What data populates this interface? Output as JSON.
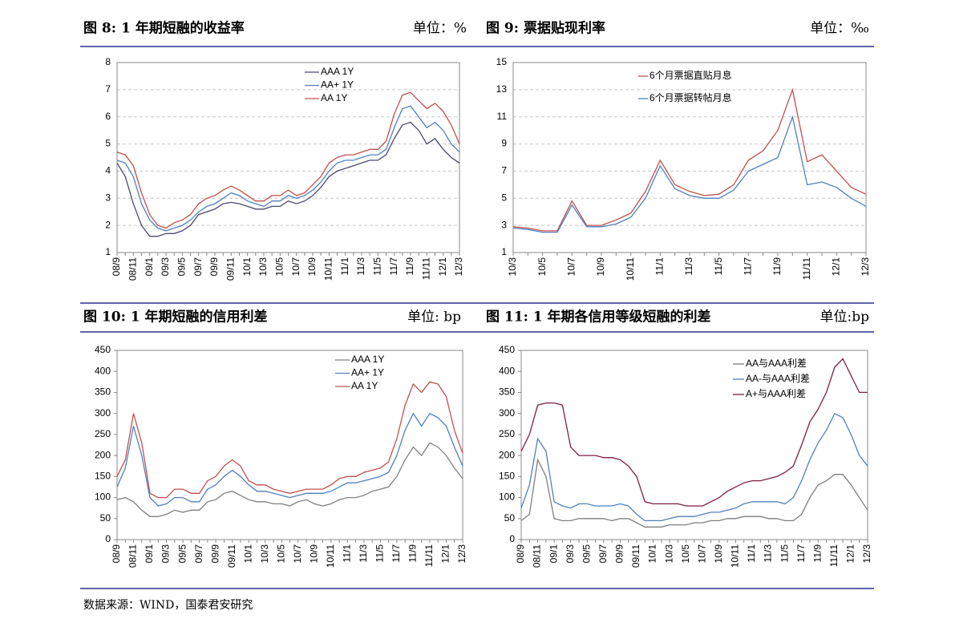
{
  "chart_data": [
    {
      "type": "line",
      "title": "图 8:  1 年期短融的收益率",
      "unit": "单位：%",
      "categories": [
        "08/9",
        null,
        "08/11",
        null,
        "09/1",
        null,
        "09/3",
        null,
        "09/5",
        null,
        "09/7",
        null,
        "09/9",
        null,
        "09/11",
        null,
        "10/1",
        null,
        "10/3",
        null,
        "10/5",
        null,
        "10/7",
        null,
        "10/9",
        null,
        "10/11",
        null,
        "11/1",
        null,
        "11/3",
        null,
        "11/5",
        null,
        "11/7",
        null,
        "11/9",
        null,
        "11/11",
        null,
        "12/1",
        null,
        "12/3"
      ],
      "series": [
        {
          "name": "AAA 1Y",
          "color": "#4a4a6a",
          "values": [
            4.3,
            3.8,
            2.8,
            2.0,
            1.6,
            1.6,
            1.7,
            1.7,
            1.8,
            2.0,
            2.4,
            2.5,
            2.6,
            2.8,
            2.85,
            2.8,
            2.7,
            2.6,
            2.6,
            2.7,
            2.7,
            2.9,
            2.8,
            2.9,
            3.1,
            3.4,
            3.8,
            4.0,
            4.1,
            4.2,
            4.3,
            4.4,
            4.4,
            4.6,
            5.2,
            5.7,
            5.8,
            5.5,
            5.0,
            5.2,
            4.8,
            4.5,
            4.3
          ]
        },
        {
          "name": "AA+ 1Y",
          "color": "#4f81bd",
          "values": [
            4.4,
            4.3,
            3.8,
            2.8,
            2.2,
            1.9,
            1.8,
            1.9,
            2.0,
            2.2,
            2.5,
            2.7,
            2.8,
            3.0,
            3.2,
            3.1,
            2.9,
            2.8,
            2.7,
            2.9,
            2.9,
            3.1,
            3.0,
            3.1,
            3.3,
            3.6,
            4.0,
            4.3,
            4.4,
            4.4,
            4.5,
            4.6,
            4.6,
            4.8,
            5.6,
            6.3,
            6.4,
            6.0,
            5.6,
            5.8,
            5.5,
            5.0,
            4.7
          ]
        },
        {
          "name": "AA 1Y",
          "color": "#c0504d",
          "values": [
            4.7,
            4.6,
            4.2,
            3.2,
            2.4,
            2.0,
            1.9,
            2.1,
            2.2,
            2.4,
            2.8,
            3.0,
            3.1,
            3.3,
            3.45,
            3.3,
            3.1,
            2.9,
            2.9,
            3.1,
            3.1,
            3.3,
            3.1,
            3.2,
            3.5,
            3.8,
            4.3,
            4.5,
            4.6,
            4.6,
            4.7,
            4.8,
            4.8,
            5.1,
            6.1,
            6.8,
            6.9,
            6.6,
            6.3,
            6.5,
            6.2,
            5.7,
            5.0
          ]
        }
      ],
      "ylim": [
        1,
        8
      ],
      "yticks": [
        1,
        2,
        3,
        4,
        5,
        6,
        7,
        8
      ],
      "grid": true
    },
    {
      "type": "line",
      "title": "图 9:  票据贴现利率",
      "unit": "单位：‰",
      "categories": [
        "10/3",
        null,
        "10/5",
        null,
        "10/7",
        null,
        "10/9",
        null,
        "10/11",
        null,
        "11/1",
        null,
        "11/3",
        null,
        "11/5",
        null,
        "11/7",
        null,
        "11/9",
        null,
        "11/11",
        null,
        "12/1",
        null,
        "12/3"
      ],
      "series": [
        {
          "name": "6个月票据直贴月息",
          "color": "#c0504d",
          "values": [
            2.9,
            2.8,
            2.6,
            2.6,
            4.8,
            3.0,
            3.0,
            3.4,
            3.9,
            5.5,
            7.8,
            6.0,
            5.5,
            5.2,
            5.3,
            6.0,
            7.8,
            8.5,
            10.0,
            13.0,
            7.7,
            8.2,
            7.0,
            5.8,
            5.3
          ]
        },
        {
          "name": "6个月票据转帖月息",
          "color": "#4f81bd",
          "values": [
            2.8,
            2.7,
            2.5,
            2.5,
            4.5,
            2.9,
            2.9,
            3.1,
            3.6,
            5.0,
            7.4,
            5.7,
            5.2,
            5.0,
            5.0,
            5.6,
            7.0,
            7.5,
            8.0,
            11.0,
            6.0,
            6.2,
            5.8,
            5.0,
            4.4
          ]
        }
      ],
      "ylim": [
        1,
        15
      ],
      "yticks": [
        1,
        3,
        5,
        7,
        9,
        11,
        13,
        15
      ],
      "grid": true
    },
    {
      "type": "line",
      "title": "图 10:  1 年期短融的信用利差",
      "unit": "单位:  bp",
      "categories": [
        "08/9",
        null,
        "08/11",
        null,
        "09/1",
        null,
        "09/3",
        null,
        "09/5",
        null,
        "09/7",
        null,
        "09/9",
        null,
        "09/11",
        null,
        "10/1",
        null,
        "10/3",
        null,
        "10/5",
        null,
        "10/7",
        null,
        "10/9",
        null,
        "10/11",
        null,
        "11/1",
        null,
        "11/3",
        null,
        "11/5",
        null,
        "11/7",
        null,
        "11/9",
        null,
        "11/11",
        null,
        "12/1",
        null,
        "12/3"
      ],
      "series": [
        {
          "name": "AAA 1Y",
          "color": "#7f7f7f",
          "values": [
            95,
            100,
            90,
            70,
            55,
            55,
            60,
            70,
            65,
            70,
            70,
            90,
            95,
            110,
            115,
            105,
            95,
            90,
            90,
            85,
            85,
            80,
            90,
            95,
            85,
            80,
            85,
            95,
            100,
            100,
            105,
            115,
            120,
            125,
            150,
            190,
            220,
            200,
            230,
            220,
            200,
            170,
            145
          ]
        },
        {
          "name": "AA+ 1Y",
          "color": "#4f81bd",
          "values": [
            125,
            170,
            270,
            200,
            100,
            80,
            85,
            100,
            100,
            90,
            90,
            120,
            130,
            150,
            165,
            150,
            130,
            115,
            115,
            110,
            105,
            100,
            105,
            110,
            110,
            110,
            115,
            125,
            135,
            135,
            140,
            145,
            150,
            160,
            200,
            260,
            300,
            270,
            300,
            290,
            270,
            220,
            175
          ]
        },
        {
          "name": "AA 1Y",
          "color": "#c0504d",
          "values": [
            150,
            190,
            300,
            230,
            110,
            100,
            100,
            120,
            120,
            110,
            110,
            140,
            150,
            175,
            190,
            175,
            140,
            130,
            130,
            120,
            115,
            110,
            115,
            120,
            120,
            120,
            130,
            145,
            150,
            150,
            160,
            165,
            170,
            185,
            240,
            320,
            370,
            350,
            375,
            370,
            340,
            260,
            205
          ]
        }
      ],
      "ylim": [
        0,
        450
      ],
      "yticks": [
        0,
        50,
        100,
        150,
        200,
        250,
        300,
        350,
        400,
        450
      ],
      "grid": false
    },
    {
      "type": "line",
      "title": "图 11:  1 年期各信用等级短融的利差",
      "unit": "单位:bp",
      "categories": [
        "08/9",
        null,
        "08/11",
        null,
        "09/1",
        null,
        "09/3",
        null,
        "09/5",
        null,
        "09/7",
        null,
        "09/9",
        null,
        "09/11",
        null,
        "10/1",
        null,
        "10/3",
        null,
        "10/5",
        null,
        "10/7",
        null,
        "10/9",
        null,
        "10/11",
        null,
        "11/1",
        null,
        "11/3",
        null,
        "11/5",
        null,
        "11/7",
        null,
        "11/9",
        null,
        "11/11",
        null,
        "12/1",
        null,
        "12/3"
      ],
      "series": [
        {
          "name": "AA与AAA利差",
          "color": "#7f7f7f",
          "values": [
            45,
            60,
            190,
            150,
            50,
            45,
            45,
            50,
            50,
            50,
            50,
            45,
            50,
            50,
            40,
            30,
            30,
            30,
            35,
            35,
            35,
            40,
            40,
            45,
            45,
            50,
            50,
            55,
            55,
            55,
            50,
            50,
            45,
            45,
            60,
            100,
            130,
            140,
            155,
            155,
            130,
            100,
            70
          ]
        },
        {
          "name": "AA-与AAA利差",
          "color": "#4f81bd",
          "values": [
            75,
            130,
            240,
            210,
            90,
            80,
            75,
            85,
            85,
            80,
            80,
            80,
            85,
            80,
            60,
            45,
            45,
            45,
            50,
            55,
            55,
            55,
            60,
            65,
            65,
            70,
            75,
            85,
            90,
            90,
            90,
            90,
            85,
            100,
            140,
            190,
            230,
            260,
            300,
            290,
            250,
            200,
            175
          ]
        },
        {
          "name": "A+与AAA利差",
          "color": "#7b1f45",
          "values": [
            210,
            250,
            320,
            325,
            325,
            320,
            220,
            200,
            200,
            200,
            195,
            195,
            190,
            175,
            150,
            90,
            85,
            85,
            85,
            85,
            80,
            80,
            80,
            90,
            100,
            115,
            125,
            135,
            140,
            140,
            145,
            150,
            160,
            175,
            225,
            280,
            310,
            350,
            410,
            430,
            390,
            350,
            350
          ]
        }
      ],
      "ylim": [
        0,
        450
      ],
      "yticks": [
        0,
        50,
        100,
        150,
        200,
        250,
        300,
        350,
        400,
        450
      ],
      "grid": false
    }
  ],
  "source": "数据来源：WIND，国泰君安研究"
}
